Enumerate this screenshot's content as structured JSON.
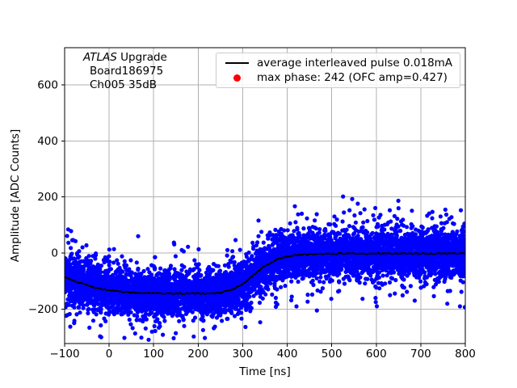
{
  "figure": {
    "background": "#ffffff"
  },
  "chart_data": {
    "type": "scatter",
    "title": "",
    "xlabel": "Time [ns]",
    "ylabel": "Amplitude [ADC Counts]",
    "xlim": [
      -100,
      800
    ],
    "ylim": [
      -322,
      732
    ],
    "xticks": [
      -100,
      0,
      100,
      200,
      300,
      400,
      500,
      600,
      700,
      800
    ],
    "yticks": [
      -200,
      0,
      200,
      400,
      600
    ],
    "grid": true,
    "grid_color": "#b0b0b0",
    "axis_color": "#000000",
    "annotation": {
      "line1_italic": "ATLAS",
      "line1_rest": " Upgrade",
      "line2": "Board186975",
      "line3": "Ch005 35dB"
    },
    "legend": {
      "position": "upper right",
      "entries": [
        {
          "marker": "line",
          "color": "#000000",
          "label": "average interleaved pulse 0.018mA"
        },
        {
          "marker": "dot",
          "color": "#ff0000",
          "label": "max phase: 242 (OFC amp=0.427)"
        }
      ]
    },
    "series": [
      {
        "name": "interleaved pulse samples",
        "type": "scatter",
        "color": "#0000ff",
        "marker_radius": 2.6,
        "generator": {
          "n": 7000,
          "seed": 12345,
          "core_fraction": 0.9,
          "core_sigma": 40,
          "tail_sigma": 88,
          "max_dev": 205
        }
      },
      {
        "name": "average interleaved pulse",
        "type": "line",
        "color": "#000000",
        "width": 2,
        "jitter": 2.2,
        "points": [
          [
            -100,
            -86
          ],
          [
            -90,
            -92
          ],
          [
            -80,
            -98
          ],
          [
            -70,
            -104
          ],
          [
            -60,
            -109
          ],
          [
            -50,
            -114
          ],
          [
            -40,
            -119
          ],
          [
            -30,
            -123
          ],
          [
            -20,
            -127
          ],
          [
            -10,
            -130
          ],
          [
            0,
            -132
          ],
          [
            20,
            -136
          ],
          [
            40,
            -139
          ],
          [
            60,
            -141
          ],
          [
            80,
            -142
          ],
          [
            100,
            -143
          ],
          [
            120,
            -143
          ],
          [
            140,
            -144
          ],
          [
            160,
            -144
          ],
          [
            180,
            -144
          ],
          [
            200,
            -144
          ],
          [
            220,
            -144
          ],
          [
            240,
            -142
          ],
          [
            255,
            -139
          ],
          [
            270,
            -133
          ],
          [
            280,
            -127
          ],
          [
            290,
            -119
          ],
          [
            300,
            -109
          ],
          [
            310,
            -97
          ],
          [
            320,
            -84
          ],
          [
            330,
            -71
          ],
          [
            340,
            -58
          ],
          [
            350,
            -46
          ],
          [
            360,
            -36
          ],
          [
            370,
            -28
          ],
          [
            380,
            -21
          ],
          [
            390,
            -16
          ],
          [
            400,
            -12
          ],
          [
            415,
            -8
          ],
          [
            430,
            -5
          ],
          [
            445,
            -4
          ],
          [
            460,
            -3
          ],
          [
            480,
            -2
          ],
          [
            500,
            -2
          ],
          [
            525,
            -1
          ],
          [
            550,
            -1
          ],
          [
            575,
            -2
          ],
          [
            600,
            -1
          ],
          [
            625,
            -1
          ],
          [
            650,
            -2
          ],
          [
            675,
            -1
          ],
          [
            700,
            -1
          ],
          [
            725,
            -2
          ],
          [
            750,
            -1
          ],
          [
            775,
            -1
          ],
          [
            800,
            -1
          ]
        ]
      }
    ]
  }
}
